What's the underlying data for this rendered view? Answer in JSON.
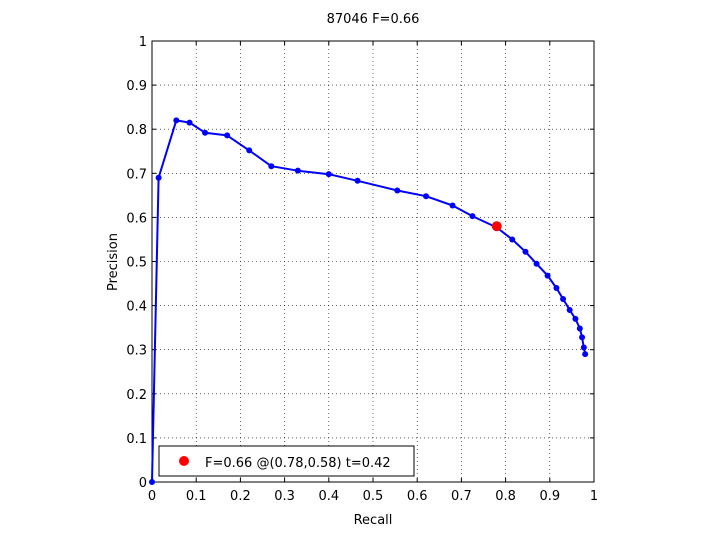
{
  "chart_data": {
    "type": "line",
    "title": "87046 F=0.66",
    "xlabel": "Recall",
    "ylabel": "Precision",
    "xlim": [
      0,
      1
    ],
    "ylim": [
      0,
      1
    ],
    "grid": true,
    "legend_position": "bottom-left",
    "x_ticks": [
      "0",
      "0.1",
      "0.2",
      "0.3",
      "0.4",
      "0.5",
      "0.6",
      "0.7",
      "0.8",
      "0.9",
      "1"
    ],
    "y_ticks": [
      "0",
      "0.1",
      "0.2",
      "0.3",
      "0.4",
      "0.5",
      "0.6",
      "0.7",
      "0.8",
      "0.9",
      "1"
    ],
    "series": [
      {
        "color": "#0000ff",
        "marker": "dot",
        "x": [
          0.0,
          0.015,
          0.055,
          0.085,
          0.12,
          0.17,
          0.22,
          0.27,
          0.33,
          0.4,
          0.465,
          0.555,
          0.62,
          0.68,
          0.725,
          0.78,
          0.815,
          0.845,
          0.87,
          0.895,
          0.915,
          0.93,
          0.945,
          0.958,
          0.968,
          0.973,
          0.977,
          0.98
        ],
        "y": [
          0.0,
          0.69,
          0.82,
          0.815,
          0.792,
          0.786,
          0.752,
          0.716,
          0.706,
          0.698,
          0.683,
          0.661,
          0.648,
          0.627,
          0.603,
          0.577,
          0.55,
          0.522,
          0.495,
          0.468,
          0.44,
          0.415,
          0.39,
          0.37,
          0.348,
          0.328,
          0.305,
          0.29
        ]
      }
    ],
    "best_point": {
      "x": 0.78,
      "y": 0.58,
      "color": "#ff0000"
    },
    "legend": {
      "text": "F=0.66 @(0.78,0.58) t=0.42",
      "marker_color": "#ff0000"
    }
  }
}
